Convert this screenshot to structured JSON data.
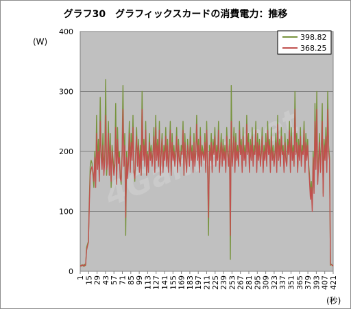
{
  "chart_data": {
    "type": "line",
    "title": "グラフ30　グラフィックスカードの消費電力：推移",
    "ylabel": "(W)",
    "xlabel": "(秒)",
    "ylim": [
      0,
      400
    ],
    "yticks": [
      "0",
      "100",
      "200",
      "300",
      "400"
    ],
    "xticks": [
      "1",
      "15",
      "29",
      "43",
      "57",
      "71",
      "85",
      "99",
      "113",
      "127",
      "141",
      "155",
      "169",
      "183",
      "197",
      "211",
      "225",
      "239",
      "253",
      "267",
      "281",
      "295",
      "309",
      "323",
      "337",
      "351",
      "365",
      "379",
      "393",
      "407",
      "421"
    ],
    "grid": true,
    "legend_position": "top-right",
    "watermark": "4Gamer.net",
    "series": [
      {
        "name": "398.82",
        "color": "#77933c",
        "values": [
          10,
          9,
          11,
          10,
          8,
          12,
          10,
          40,
          45,
          50,
          120,
          175,
          185,
          180,
          160,
          140,
          200,
          150,
          260,
          180,
          220,
          160,
          290,
          200,
          180,
          230,
          170,
          195,
          320,
          160,
          190,
          250,
          170,
          230,
          140,
          210,
          190,
          170,
          180,
          280,
          150,
          240,
          190,
          200,
          160,
          145,
          200,
          310,
          180,
          230,
          60,
          200,
          160,
          190,
          250,
          170,
          230,
          190,
          260,
          170,
          150,
          200,
          240,
          180,
          220,
          170,
          210,
          160,
          300,
          190,
          220,
          180,
          250,
          160,
          200,
          170,
          230,
          190,
          210,
          180,
          200,
          240,
          170,
          260,
          190,
          220,
          180,
          250,
          160,
          200,
          230,
          170,
          210,
          190,
          240,
          180,
          220,
          170,
          200,
          250,
          160,
          230,
          190,
          210,
          180,
          200,
          240,
          170,
          220,
          190,
          180,
          210,
          200,
          250,
          160,
          230,
          190,
          170,
          220,
          200,
          180,
          240,
          190,
          210,
          170,
          230,
          180,
          200,
          260,
          190,
          220,
          170,
          240,
          180,
          210,
          200,
          190,
          230,
          170,
          250,
          180,
          60,
          210,
          190,
          230,
          170,
          220,
          200,
          240,
          180,
          210,
          190,
          250,
          170,
          200,
          230,
          180,
          220,
          190,
          210,
          170,
          240,
          200,
          180,
          220,
          20,
          310,
          180,
          200,
          240,
          170,
          230,
          190,
          210,
          180,
          250,
          200,
          220,
          170,
          240,
          190,
          210,
          180,
          260,
          200,
          230,
          170,
          220,
          190,
          240,
          180,
          210,
          200,
          250,
          170,
          230,
          190,
          220,
          180,
          200,
          240,
          170,
          210,
          190,
          230,
          180,
          250,
          200,
          220,
          170,
          240,
          190,
          210,
          180,
          200,
          230,
          170,
          260,
          190,
          220,
          180,
          240,
          200,
          210,
          170,
          230,
          190,
          180,
          220,
          200,
          250,
          170,
          240,
          190,
          210,
          180,
          300,
          200,
          230,
          170,
          220,
          190,
          240,
          180,
          210,
          200,
          250,
          170,
          230,
          190,
          220,
          180,
          160,
          130,
          150,
          110,
          200,
          140,
          280,
          180,
          300,
          150,
          190,
          230,
          170,
          210,
          280,
          130,
          220,
          190,
          240,
          170,
          300,
          210,
          190,
          10,
          12,
          10,
          9
        ]
      },
      {
        "name": "368.25",
        "color": "#c0504d",
        "values": [
          8,
          10,
          9,
          11,
          10,
          9,
          12,
          35,
          42,
          48,
          110,
          160,
          170,
          175,
          165,
          150,
          190,
          140,
          230,
          170,
          200,
          150,
          250,
          190,
          170,
          210,
          160,
          185,
          260,
          170,
          180,
          230,
          160,
          210,
          150,
          200,
          180,
          160,
          175,
          240,
          145,
          220,
          180,
          190,
          155,
          150,
          190,
          270,
          175,
          210,
          90,
          190,
          155,
          180,
          230,
          165,
          215,
          185,
          240,
          165,
          155,
          195,
          225,
          175,
          210,
          165,
          200,
          160,
          270,
          185,
          210,
          175,
          235,
          160,
          195,
          165,
          215,
          185,
          200,
          175,
          195,
          225,
          165,
          240,
          185,
          210,
          175,
          235,
          160,
          195,
          220,
          165,
          200,
          185,
          225,
          175,
          210,
          165,
          195,
          235,
          160,
          215,
          185,
          200,
          175,
          195,
          225,
          165,
          210,
          185,
          175,
          200,
          195,
          235,
          160,
          215,
          185,
          165,
          210,
          195,
          175,
          225,
          185,
          200,
          165,
          215,
          175,
          195,
          245,
          185,
          210,
          165,
          225,
          175,
          200,
          195,
          185,
          215,
          165,
          235,
          175,
          90,
          200,
          185,
          215,
          165,
          210,
          195,
          225,
          175,
          200,
          185,
          235,
          165,
          195,
          215,
          175,
          210,
          185,
          200,
          165,
          225,
          195,
          175,
          210,
          60,
          250,
          175,
          195,
          225,
          165,
          215,
          185,
          200,
          175,
          235,
          195,
          210,
          165,
          225,
          185,
          200,
          175,
          245,
          195,
          215,
          165,
          210,
          185,
          225,
          175,
          200,
          195,
          235,
          165,
          215,
          185,
          210,
          175,
          195,
          225,
          165,
          200,
          185,
          215,
          175,
          235,
          195,
          210,
          165,
          225,
          185,
          200,
          175,
          195,
          215,
          165,
          245,
          185,
          210,
          175,
          225,
          195,
          200,
          165,
          215,
          185,
          175,
          210,
          195,
          235,
          165,
          225,
          185,
          200,
          175,
          270,
          195,
          215,
          165,
          210,
          185,
          225,
          175,
          200,
          195,
          235,
          165,
          215,
          185,
          210,
          175,
          150,
          120,
          140,
          100,
          190,
          130,
          250,
          170,
          270,
          145,
          180,
          215,
          165,
          200,
          250,
          125,
          210,
          185,
          225,
          165,
          270,
          200,
          185,
          12,
          11,
          10,
          9
        ]
      }
    ]
  }
}
